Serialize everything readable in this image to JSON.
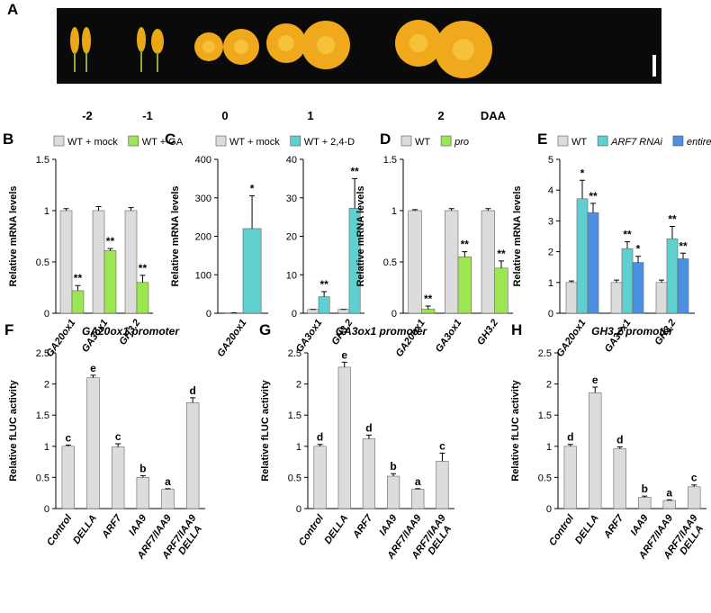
{
  "photo_panel": {
    "panel": "A",
    "timepoints": [
      "-2",
      "-1",
      "0",
      "1",
      "2"
    ],
    "unit": "DAA"
  },
  "chart_data": [
    {
      "panel": "B",
      "type": "bar",
      "ylabel": "Relative mRNA levels",
      "legend": [
        {
          "name": "WT + mock",
          "color": "#dcdcdc"
        },
        {
          "name": "WT + GA",
          "color": "#9be651"
        }
      ],
      "subplots": [
        {
          "categories": [
            "GA20ox1",
            "GA3ox1",
            "GH3.2"
          ],
          "ylim": [
            0,
            1.5
          ],
          "yticks": [
            0,
            0.5,
            1,
            1.5
          ],
          "series": [
            {
              "values": [
                1,
                1,
                1
              ],
              "errors": [
                0.02,
                0.04,
                0.03
              ]
            },
            {
              "values": [
                0.22,
                0.61,
                0.3
              ],
              "errors": [
                0.05,
                0.02,
                0.07
              ],
              "labels": [
                "**",
                "**",
                "**"
              ]
            }
          ]
        }
      ]
    },
    {
      "panel": "C",
      "type": "bar",
      "ylabel": "Relative mRNA levels",
      "legend": [
        {
          "name": "WT + mock",
          "color": "#dcdcdc"
        },
        {
          "name": "WT + 2,4-D",
          "color": "#5ed0d0"
        }
      ],
      "subplots": [
        {
          "categories": [
            "GA20ox1"
          ],
          "ylim": [
            0,
            400
          ],
          "yticks": [
            0,
            100,
            200,
            300,
            400
          ],
          "series": [
            {
              "values": [
                1
              ],
              "errors": [
                0
              ]
            },
            {
              "values": [
                220
              ],
              "errors": [
                85
              ],
              "labels": [
                "*"
              ]
            }
          ]
        },
        {
          "categories": [
            "GA3ox1",
            "GH3.2"
          ],
          "ylim": [
            0,
            40
          ],
          "yticks": [
            0,
            10,
            20,
            30,
            40
          ],
          "series": [
            {
              "values": [
                1,
                1
              ],
              "errors": [
                0,
                0
              ]
            },
            {
              "values": [
                4.3,
                27.3
              ],
              "errors": [
                1.3,
                7.7
              ],
              "labels": [
                "**",
                "**"
              ]
            }
          ]
        }
      ]
    },
    {
      "panel": "D",
      "type": "bar",
      "ylabel": "Relative mRNA levels",
      "legend": [
        {
          "name": "WT",
          "color": "#dcdcdc"
        },
        {
          "name": "pro",
          "color": "#9be651"
        }
      ],
      "subplots": [
        {
          "categories": [
            "GA20ox1",
            "GA3ox1",
            "GH3.2"
          ],
          "ylim": [
            0,
            1.5
          ],
          "yticks": [
            0,
            0.5,
            1,
            1.5
          ],
          "series": [
            {
              "values": [
                1,
                1,
                1
              ],
              "errors": [
                0.01,
                0.02,
                0.02
              ]
            },
            {
              "values": [
                0.04,
                0.55,
                0.44
              ],
              "errors": [
                0.03,
                0.05,
                0.07
              ],
              "labels": [
                "**",
                "**",
                "**"
              ]
            }
          ]
        }
      ]
    },
    {
      "panel": "E",
      "type": "bar",
      "ylabel": "Relative mRNA levels",
      "legend": [
        {
          "name": "WT",
          "color": "#dcdcdc"
        },
        {
          "name": "ARF7 RNAi",
          "color": "#5ed0d0"
        },
        {
          "name": "entire",
          "color": "#4d8fe0"
        }
      ],
      "subplots": [
        {
          "categories": [
            "GA20ox1",
            "GA3ox1",
            "GH3.2"
          ],
          "ylim": [
            0,
            5
          ],
          "yticks": [
            0,
            1,
            2,
            3,
            4,
            5
          ],
          "series": [
            {
              "values": [
                1,
                1,
                1
              ],
              "errors": [
                0.05,
                0.08,
                0.08
              ]
            },
            {
              "values": [
                3.72,
                2.1,
                2.42
              ],
              "errors": [
                0.6,
                0.22,
                0.4
              ],
              "labels": [
                "*",
                "**",
                "**"
              ]
            },
            {
              "values": [
                3.27,
                1.65,
                1.77
              ],
              "errors": [
                0.3,
                0.2,
                0.18
              ],
              "labels": [
                "**",
                "*",
                "**"
              ]
            }
          ]
        }
      ]
    },
    {
      "panel": "F",
      "type": "bar",
      "title": "GA20ox1 promoter",
      "ylabel": "Relative fLUC activity",
      "color": "#dcdcdc",
      "subplots": [
        {
          "categories": [
            "Control",
            "DELLA",
            "ARF7",
            "IAA9",
            "ARF7/IAA9",
            [
              "ARF7/IAA9",
              "DELLA"
            ]
          ],
          "ylim": [
            0,
            2.5
          ],
          "yticks": [
            0,
            0.5,
            1,
            1.5,
            2,
            2.5
          ],
          "series": [
            {
              "values": [
                1,
                2.1,
                0.99,
                0.5,
                0.31,
                1.7
              ],
              "errors": [
                0.02,
                0.04,
                0.05,
                0.03,
                0.01,
                0.08
              ],
              "labels": [
                "c",
                "e",
                "c",
                "b",
                "a",
                "d"
              ]
            }
          ]
        }
      ]
    },
    {
      "panel": "G",
      "type": "bar",
      "title": "GA3ox1 promoter",
      "ylabel": "Relative fLUC activity",
      "color": "#dcdcdc",
      "subplots": [
        {
          "categories": [
            "Control",
            "DELLA",
            "ARF7",
            "IAA9",
            "ARF7/IAA9",
            [
              "ARF7/IAA9",
              "DELLA"
            ]
          ],
          "ylim": [
            0,
            2.5
          ],
          "yticks": [
            0,
            0.5,
            1,
            1.5,
            2,
            2.5
          ],
          "series": [
            {
              "values": [
                1,
                2.27,
                1.12,
                0.52,
                0.31,
                0.76
              ],
              "errors": [
                0.03,
                0.08,
                0.06,
                0.04,
                0.01,
                0.13
              ],
              "labels": [
                "d",
                "e",
                "d",
                "b",
                "a",
                "c"
              ]
            }
          ]
        }
      ]
    },
    {
      "panel": "H",
      "type": "bar",
      "title": "GH3.2 promoter",
      "ylabel": "Relative fLUC activity",
      "color": "#dcdcdc",
      "subplots": [
        {
          "categories": [
            "Control",
            "DELLA",
            "ARF7",
            "IAA9",
            "ARF7/IAA9",
            [
              "ARF7/IAA9",
              "DELLA"
            ]
          ],
          "ylim": [
            0,
            2.5
          ],
          "yticks": [
            0,
            0.5,
            1,
            1.5,
            2,
            2.5
          ],
          "series": [
            {
              "values": [
                1,
                1.86,
                0.96,
                0.18,
                0.13,
                0.35
              ],
              "errors": [
                0.03,
                0.09,
                0.03,
                0.02,
                0.01,
                0.03
              ],
              "labels": [
                "d",
                "e",
                "d",
                "b",
                "a",
                "c"
              ]
            }
          ]
        }
      ]
    }
  ]
}
